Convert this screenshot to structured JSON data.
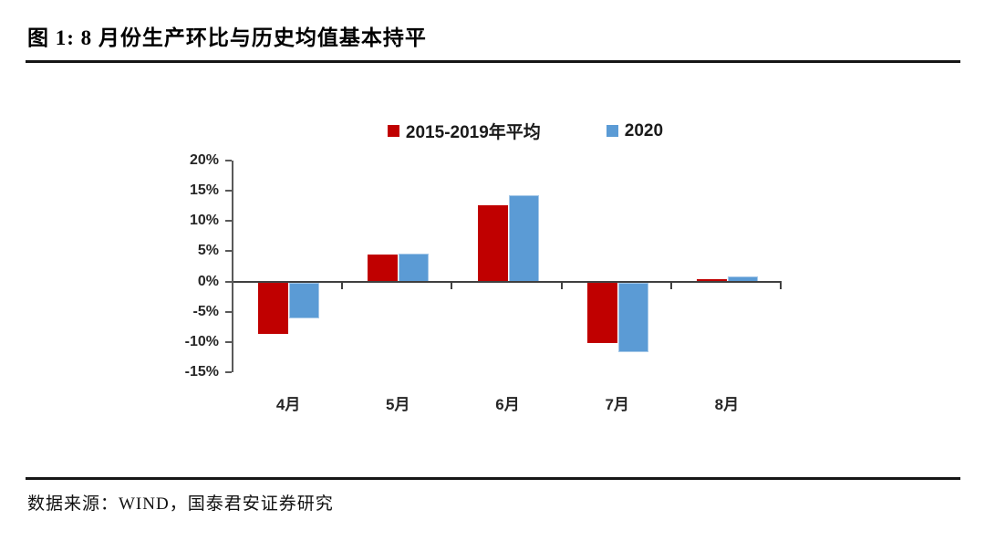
{
  "figure": {
    "title": "图 1: 8 月份生产环比与历史均值基本持平",
    "source": "数据来源：WIND，国泰君安证券研究"
  },
  "colors": {
    "series_red": "#c00000",
    "series_blue": "#5b9bd5",
    "axis": "#595959",
    "zero_line": "#404040",
    "rule": "#161616"
  },
  "chart_data": {
    "type": "bar",
    "title": "8月份生产环比与历史均值基本持平",
    "categories": [
      "4月",
      "5月",
      "6月",
      "7月",
      "8月"
    ],
    "series": [
      {
        "name": "2015-2019年平均",
        "color": "#c00000",
        "values": [
          -8.5,
          4.5,
          12.6,
          -10.0,
          0.4
        ]
      },
      {
        "name": "2020",
        "color": "#5b9bd5",
        "values": [
          -6.0,
          4.6,
          14.2,
          -11.5,
          0.8
        ]
      }
    ],
    "xlabel": "",
    "ylabel": "",
    "ylim": [
      -15,
      20
    ],
    "ytick_step": 5,
    "ytick_labels": [
      "20%",
      "15%",
      "10%",
      "5%",
      "0%",
      "-5%",
      "-10%",
      "-15%"
    ],
    "grid": false,
    "legend_position": "top-center"
  }
}
